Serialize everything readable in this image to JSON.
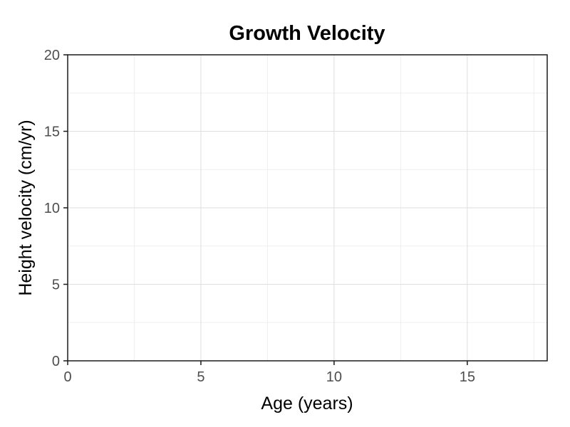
{
  "chart_data": {
    "type": "line",
    "title": "Growth Velocity",
    "xlabel": "Age (years)",
    "ylabel": "Height velocity (cm/yr)",
    "xlim": [
      0,
      18
    ],
    "ylim": [
      0,
      20
    ],
    "x_ticks": [
      0,
      5,
      10,
      15
    ],
    "y_ticks": [
      0,
      5,
      10,
      15,
      20
    ],
    "grid": true,
    "series": []
  }
}
